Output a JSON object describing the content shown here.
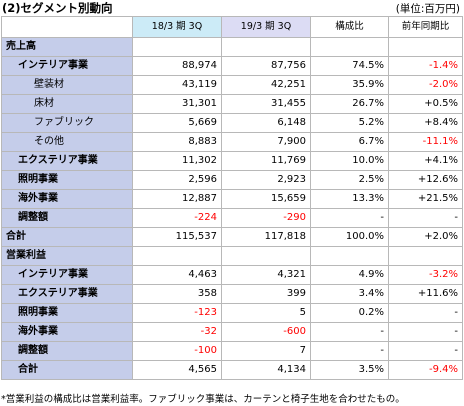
{
  "title": "(2)セグメント別動向",
  "unit": "(単位:百万円)",
  "headers": [
    "",
    "18/3 期 3Q",
    "19/3 期 3Q",
    "構成比",
    "前年同期比"
  ],
  "rows": [
    {
      "label": "売上高",
      "level": 0,
      "prev": "",
      "curr": "",
      "ratio": "",
      "yoy": ""
    },
    {
      "label": "インテリア事業",
      "level": 1,
      "prev": "88,974",
      "curr": "87,756",
      "ratio": "74.5%",
      "yoy": "-1.4%"
    },
    {
      "label": "壁装材",
      "level": 2,
      "prev": "43,119",
      "curr": "42,251",
      "ratio": "35.9%",
      "yoy": "-2.0%"
    },
    {
      "label": "床材",
      "level": 2,
      "prev": "31,301",
      "curr": "31,455",
      "ratio": "26.7%",
      "yoy": "+0.5%"
    },
    {
      "label": "ファブリック",
      "level": 2,
      "prev": "5,669",
      "curr": "6,148",
      "ratio": "5.2%",
      "yoy": "+8.4%"
    },
    {
      "label": "その他",
      "level": 2,
      "prev": "8,883",
      "curr": "7,900",
      "ratio": "6.7%",
      "yoy": "-11.1%"
    },
    {
      "label": "エクステリア事業",
      "level": 1,
      "prev": "11,302",
      "curr": "11,769",
      "ratio": "10.0%",
      "yoy": "+4.1%"
    },
    {
      "label": "照明事業",
      "level": 1,
      "prev": "2,596",
      "curr": "2,923",
      "ratio": "2.5%",
      "yoy": "+12.6%"
    },
    {
      "label": "海外事業",
      "level": 1,
      "prev": "12,887",
      "curr": "15,659",
      "ratio": "13.3%",
      "yoy": "+21.5%"
    },
    {
      "label": "調整額",
      "level": 1,
      "prev": "-224",
      "curr": "-290",
      "ratio": "-",
      "yoy": "-"
    },
    {
      "label": "合計",
      "level": 0,
      "prev": "115,537",
      "curr": "117,818",
      "ratio": "100.0%",
      "yoy": "+2.0%"
    },
    {
      "label": "営業利益",
      "level": 0,
      "prev": "",
      "curr": "",
      "ratio": "",
      "yoy": ""
    },
    {
      "label": "インテリア事業",
      "level": 1,
      "prev": "4,463",
      "curr": "4,321",
      "ratio": "4.9%",
      "yoy": "-3.2%"
    },
    {
      "label": "エクステリア事業",
      "level": 1,
      "prev": "358",
      "curr": "399",
      "ratio": "3.4%",
      "yoy": "+11.6%"
    },
    {
      "label": "照明事業",
      "level": 1,
      "prev": "-123",
      "curr": "5",
      "ratio": "0.2%",
      "yoy": "-"
    },
    {
      "label": "海外事業",
      "level": 1,
      "prev": "-32",
      "curr": "-600",
      "ratio": "-",
      "yoy": "-"
    },
    {
      "label": "調整額",
      "level": 1,
      "prev": "-100",
      "curr": "7",
      "ratio": "-",
      "yoy": "-"
    },
    {
      "label": "合計",
      "level": 1,
      "prev": "4,565",
      "curr": "4,134",
      "ratio": "3.5%",
      "yoy": "-9.4%"
    }
  ],
  "footnote": "*営業利益の構成比は営業利益率。ファブリック事業は、カーテンと椅子生地を合わせたもの。",
  "colors": {
    "label_bg": "#c5cdea",
    "prev_header_bg": "#ccebf7",
    "curr_header_bg": "#dcdcf4",
    "negative": "#ff0000",
    "border": "#b8b8b8"
  }
}
